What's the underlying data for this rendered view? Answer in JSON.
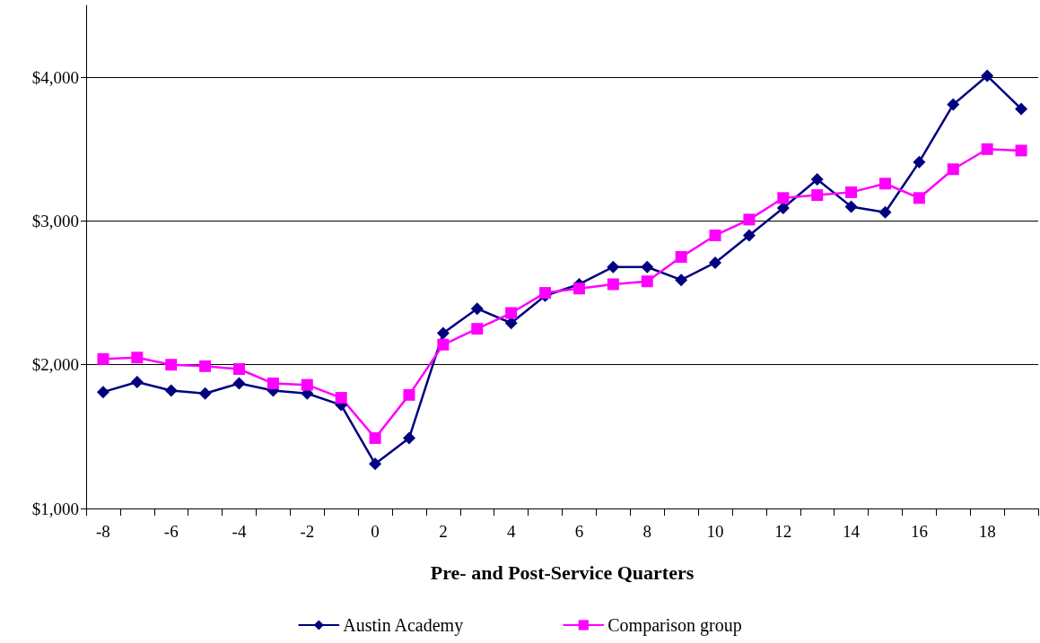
{
  "chart_data": {
    "type": "line",
    "xlabel": "Pre- and Post-Service Quarters",
    "categories": [
      "-8",
      null,
      "-6",
      null,
      "-4",
      null,
      "-2",
      null,
      "0",
      null,
      "2",
      null,
      "4",
      null,
      "6",
      null,
      "8",
      null,
      "10",
      null,
      "12",
      null,
      "14",
      null,
      "16",
      null,
      "18",
      null
    ],
    "series": [
      {
        "name": "Austin Academy",
        "color": "#000080",
        "marker": "diamond",
        "values": [
          1810,
          1880,
          1820,
          1800,
          1870,
          1820,
          1800,
          1720,
          1310,
          1490,
          2220,
          2390,
          2290,
          2480,
          2560,
          2680,
          2680,
          2590,
          2710,
          2900,
          3090,
          3290,
          3100,
          3060,
          3410,
          3810,
          4010,
          3780
        ]
      },
      {
        "name": "Comparison group",
        "color": "#ff00ff",
        "marker": "square",
        "values": [
          2040,
          2050,
          2000,
          1990,
          1970,
          1870,
          1860,
          1770,
          1490,
          1790,
          2140,
          2250,
          2360,
          2500,
          2530,
          2560,
          2580,
          2750,
          2900,
          3010,
          3160,
          3180,
          3200,
          3260,
          3160,
          3360,
          3500,
          3490
        ]
      }
    ],
    "ylim": [
      1000,
      4500
    ],
    "yticks": [
      {
        "value": 1000,
        "label": "$1,000"
      },
      {
        "value": 2000,
        "label": "$2,000"
      },
      {
        "value": 3000,
        "label": "$3,000"
      },
      {
        "value": 4000,
        "label": "$4,000"
      }
    ],
    "grid": "y",
    "legend": "bottom",
    "line_style": "solid"
  }
}
